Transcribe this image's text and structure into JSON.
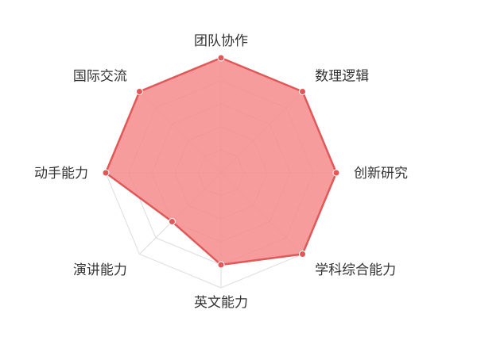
{
  "chart_data": {
    "type": "radar",
    "axes": [
      "团队协作",
      "数理逻辑",
      "创新研究",
      "学科综合能力",
      "英文能力",
      "演讲能力",
      "动手能力",
      "国际交流"
    ],
    "range": [
      0,
      100
    ],
    "rings": 5,
    "series": [
      {
        "values": [
          100,
          100,
          100,
          100,
          80,
          60,
          100,
          100
        ]
      }
    ],
    "colors": {
      "fill": "#f48b8b",
      "stroke": "#e05858",
      "point": "#e05858",
      "grid": "#dcdcdc",
      "label": "#333333"
    }
  }
}
